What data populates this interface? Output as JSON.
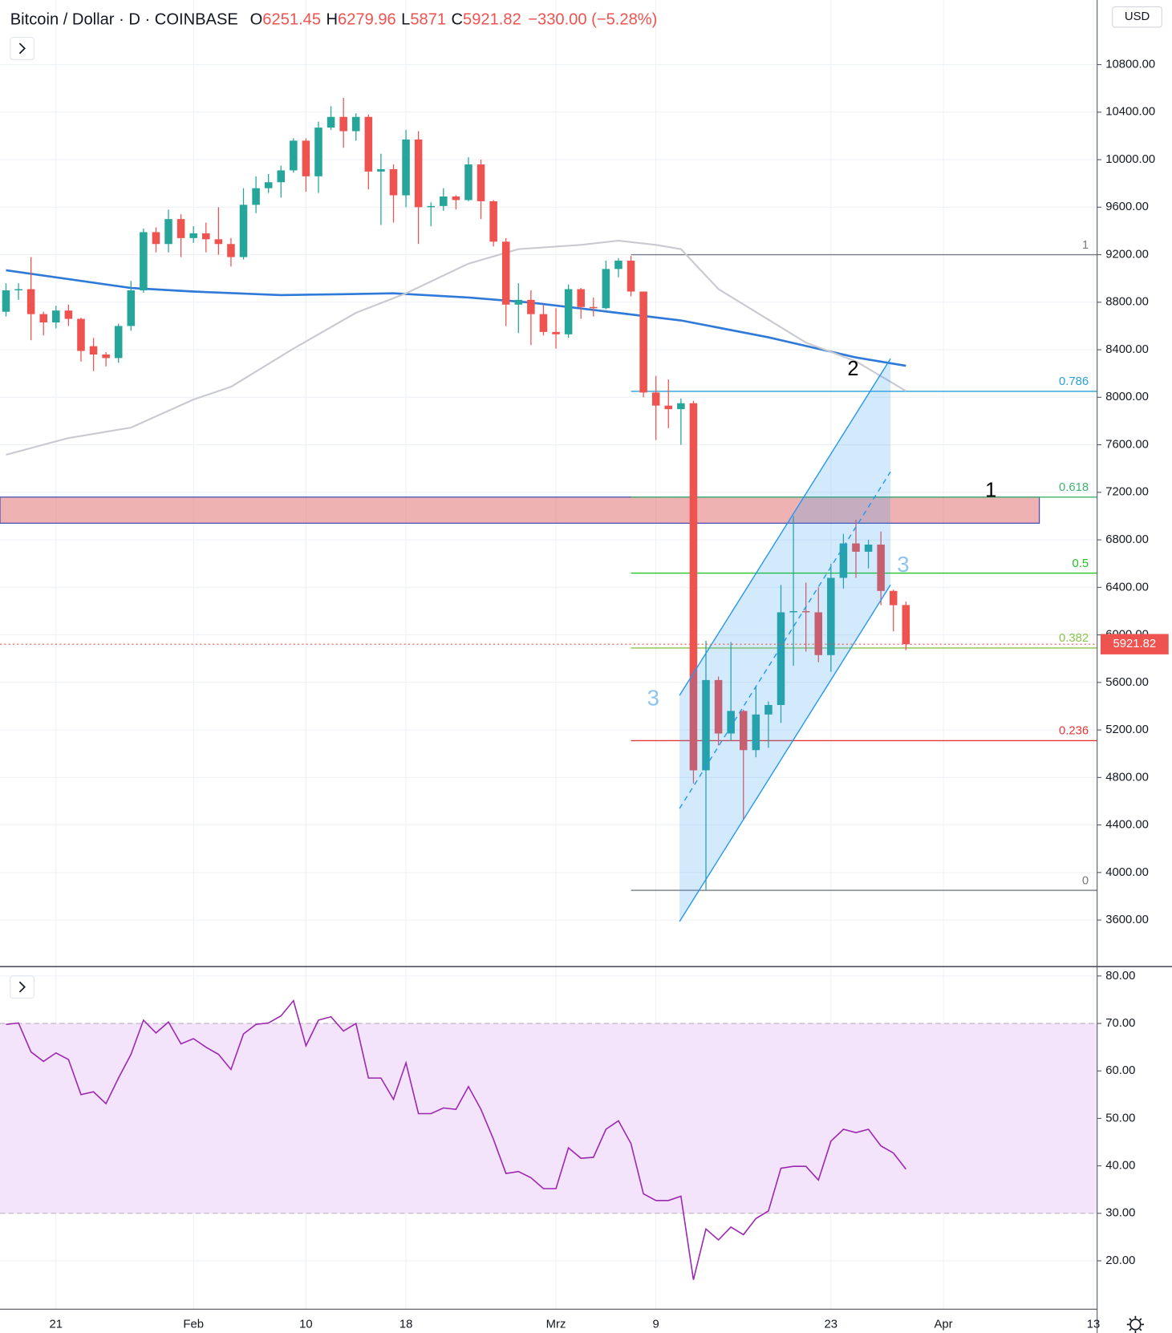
{
  "chart_data": [
    {
      "type": "candlestick",
      "title": "Bitcoin / Dollar · D · COINBASE",
      "ohlc_labels": [
        "O",
        "H",
        "L",
        "C"
      ],
      "change": "−330.00 (−5.28%)",
      "currency": "USD",
      "up_color": "#26a69a",
      "down_color": "#ef5350",
      "open": [
        8720,
        8900,
        8910,
        8700,
        8630,
        8730,
        8660,
        8430,
        8360,
        8330,
        8600,
        8900,
        9390,
        9290,
        9500,
        9340,
        9380,
        9330,
        9290,
        9180,
        9620,
        9760,
        9810,
        9910,
        10160,
        9860,
        10270,
        10360,
        10240,
        10360,
        9900,
        9920,
        9700,
        10170,
        9600,
        9610,
        9690,
        9660,
        9960,
        9650,
        9310,
        8780,
        8820,
        8700,
        8550,
        8530,
        8910,
        8760,
        8750,
        9080,
        9150,
        8890,
        8040,
        7930,
        7900,
        7950,
        4860,
        5620,
        5170,
        5360,
        5030,
        5330,
        5410,
        6190,
        6200,
        6190,
        5830,
        6480,
        6770,
        6700,
        6760,
        6370,
        6251.45
      ],
      "high": [
        8960,
        8960,
        9180,
        8720,
        8770,
        8780,
        8670,
        8500,
        8380,
        8620,
        8980,
        9420,
        9430,
        9580,
        9540,
        9440,
        9470,
        9600,
        9340,
        9760,
        9860,
        9880,
        9950,
        10180,
        10180,
        10320,
        10450,
        10520,
        10390,
        10380,
        10050,
        9960,
        10250,
        10240,
        9640,
        9760,
        9700,
        10020,
        10000,
        9660,
        9340,
        8960,
        8900,
        8780,
        8750,
        8950,
        8920,
        8840,
        9150,
        9170,
        9190,
        8890,
        8180,
        8150,
        7990,
        7970,
        5950,
        5650,
        5940,
        5370,
        5560,
        5440,
        6420,
        7000,
        6440,
        6400,
        6600,
        6850,
        6970,
        6800,
        6870,
        6380,
        6279.96
      ],
      "low": [
        8680,
        8820,
        8480,
        8520,
        8580,
        8600,
        8300,
        8220,
        8260,
        8290,
        8560,
        8880,
        9220,
        9220,
        9180,
        9300,
        9220,
        9200,
        9100,
        9160,
        9550,
        9720,
        9680,
        9890,
        9730,
        9720,
        10250,
        10100,
        10160,
        9750,
        9450,
        9470,
        9600,
        9290,
        9440,
        9570,
        9580,
        9650,
        9500,
        9270,
        8600,
        8540,
        8440,
        8520,
        8410,
        8500,
        8660,
        8680,
        8740,
        9010,
        8850,
        8000,
        7640,
        7740,
        7600,
        4750,
        3850,
        5070,
        5110,
        4440,
        4970,
        5050,
        5260,
        5740,
        5860,
        5770,
        5690,
        6390,
        6480,
        6560,
        6250,
        6030,
        5871
      ],
      "close": [
        8900,
        8910,
        8700,
        8630,
        8730,
        8660,
        8390,
        8360,
        8330,
        8600,
        8900,
        9390,
        9290,
        9500,
        9340,
        9380,
        9330,
        9290,
        9180,
        9620,
        9760,
        9810,
        9910,
        10160,
        9860,
        10270,
        10360,
        10240,
        10360,
        9900,
        9920,
        9700,
        10170,
        9600,
        9610,
        9690,
        9660,
        9960,
        9650,
        9310,
        8780,
        8820,
        8700,
        8550,
        8530,
        8910,
        8760,
        8750,
        9080,
        9150,
        8890,
        8040,
        7930,
        7900,
        7950,
        4860,
        5620,
        5170,
        5360,
        5030,
        5330,
        5410,
        6190,
        6200,
        6190,
        5830,
        6480,
        6770,
        6700,
        6760,
        6370,
        6250,
        5921.82
      ],
      "moving_averages": [
        {
          "color": "#2f7ad9",
          "x": [
            0,
            10,
            15,
            22,
            27,
            31,
            37,
            42,
            47,
            54,
            61,
            68,
            72
          ],
          "values": [
            9069,
            8920,
            8890,
            8860,
            8868,
            8875,
            8840,
            8797,
            8735,
            8647,
            8505,
            8335,
            8265
          ]
        },
        {
          "color": "#c9c9d1",
          "x": [
            0,
            5,
            10,
            15,
            18,
            23,
            28,
            32,
            37,
            41,
            46,
            49,
            52,
            54,
            57,
            64,
            68,
            72
          ],
          "values": [
            7516,
            7657,
            7745,
            7981,
            8088,
            8410,
            8711,
            8875,
            9125,
            9247,
            9283,
            9318,
            9283,
            9247,
            8911,
            8460,
            8303,
            8053
          ]
        }
      ],
      "fib": [
        {
          "label": "1",
          "value": 9200,
          "color": "#787b86"
        },
        {
          "label": "0.786",
          "value": 8050,
          "color": "#2a9fd6"
        },
        {
          "label": "0.618",
          "value": 7160,
          "color": "#3cb371"
        },
        {
          "label": "0.5",
          "value": 6520,
          "color": "#22c322"
        },
        {
          "label": "0.382",
          "value": 5890,
          "color": "#8bc34a"
        },
        {
          "label": "0.236",
          "value": 5110,
          "color": "#e53935"
        },
        {
          "label": "0",
          "value": 3850,
          "color": "#787b86"
        }
      ],
      "zone": [
        6940,
        7160
      ],
      "annotations": [
        {
          "text": "1",
          "color": "#000000"
        },
        {
          "text": "2",
          "color": "#000000"
        },
        {
          "text": "3",
          "color": "#90c4f0"
        },
        {
          "text": "3",
          "color": "#90c4f0"
        }
      ],
      "xlim": [
        -0.48,
        87.3
      ],
      "xticks": [
        {
          "value": 4,
          "label": "21"
        },
        {
          "value": 15,
          "label": "Feb"
        },
        {
          "value": 24,
          "label": "10"
        },
        {
          "value": 32,
          "label": "18"
        },
        {
          "value": 44,
          "label": "Mrz"
        },
        {
          "value": 52,
          "label": "9"
        },
        {
          "value": 66,
          "label": "23"
        },
        {
          "value": 75,
          "label": "Apr"
        },
        {
          "value": 87,
          "label": "13"
        }
      ],
      "ylim": [
        3208,
        11344
      ],
      "yticks": [
        {
          "value": 3600,
          "label": "3600.00"
        },
        {
          "value": 4000,
          "label": "4000.00"
        },
        {
          "value": 4400,
          "label": "4400.00"
        },
        {
          "value": 4800,
          "label": "4800.00"
        },
        {
          "value": 5200,
          "label": "5200.00"
        },
        {
          "value": 5600,
          "label": "5600.00"
        },
        {
          "value": 6000,
          "label": "6000.00"
        },
        {
          "value": 6400,
          "label": "6400.00"
        },
        {
          "value": 6800,
          "label": "6800.00"
        },
        {
          "value": 7200,
          "label": "7200.00"
        },
        {
          "value": 7600,
          "label": "7600.00"
        },
        {
          "value": 8000,
          "label": "8000.00"
        },
        {
          "value": 8400,
          "label": "8400.00"
        },
        {
          "value": 8800,
          "label": "8800.00"
        },
        {
          "value": 9200,
          "label": "9200.00"
        },
        {
          "value": 9600,
          "label": "9600.00"
        },
        {
          "value": 10000,
          "label": "10000.00"
        },
        {
          "value": 10400,
          "label": "10400.00"
        },
        {
          "value": 10800,
          "label": "10800.00"
        }
      ],
      "grid": true
    },
    {
      "type": "line",
      "color": "#9c27b0",
      "values": [
        69.8,
        70.1,
        64,
        62,
        63.8,
        62.4,
        55,
        55.6,
        53.1,
        58.5,
        63.5,
        70.7,
        68,
        70.3,
        65.7,
        66.8,
        65,
        63.5,
        60.3,
        67.8,
        69.8,
        70.1,
        71.6,
        74.8,
        65.3,
        70.7,
        71.4,
        68.4,
        70,
        58.5,
        58.5,
        54,
        61.7,
        51,
        51,
        52.2,
        51.9,
        56.7,
        51.9,
        45.6,
        38.4,
        38.8,
        37.5,
        35.2,
        35.2,
        43.8,
        41.6,
        41.8,
        47.7,
        49.5,
        44.7,
        34.1,
        32.7,
        32.7,
        33.6,
        16,
        26.7,
        24.4,
        27.1,
        25.5,
        28.9,
        30.5,
        39.5,
        39.9,
        39.9,
        37,
        45.2,
        47.7,
        47,
        47.7,
        44.2,
        42.7,
        39.3
      ],
      "bands": [
        30,
        70
      ],
      "band_color": "#f3e4fb",
      "ylim": [
        9.8,
        81.8
      ],
      "yticks": [
        {
          "value": 20,
          "label": "20.00"
        },
        {
          "value": 30,
          "label": "30.00"
        },
        {
          "value": 40,
          "label": "40.00"
        },
        {
          "value": 50,
          "label": "50.00"
        },
        {
          "value": 60,
          "label": "60.00"
        },
        {
          "value": 70,
          "label": "70.00"
        },
        {
          "value": 80,
          "label": "80.00"
        }
      ],
      "grid": true
    }
  ]
}
